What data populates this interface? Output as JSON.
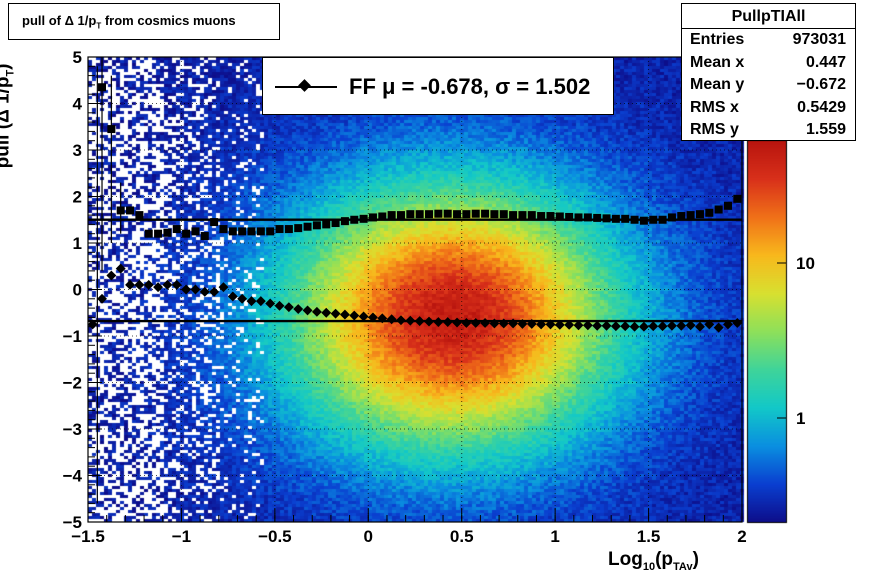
{
  "title": {
    "prefix": "pull of Δ 1/p",
    "sub": "T",
    "suffix": " from cosmics muons"
  },
  "stats": {
    "name": "PullpTIAll",
    "rows": [
      {
        "key": "Entries",
        "value": "973031"
      },
      {
        "key": "Mean x",
        "value": "0.447"
      },
      {
        "key": "Mean y",
        "value": "−0.672"
      },
      {
        "key": "RMS x",
        "value": "0.5429"
      },
      {
        "key": "RMS y",
        "value": "1.559"
      }
    ]
  },
  "legend": {
    "text": "FF μ = -0.678, σ =   1.502"
  },
  "axes": {
    "ylabel_prefix": "pull (Δ 1/p",
    "ylabel_sub": "T",
    "ylabel_suffix": ")",
    "xlabel_prefix": "Log",
    "xlabel_sub1": "10",
    "xlabel_mid": "(p",
    "xlabel_sub2": "TAv",
    "xlabel_suffix": ")"
  },
  "colors": {
    "markers": "#000000",
    "palette": [
      "#0d0d8a",
      "#0a3fd0",
      "#0a8fe0",
      "#12c8c8",
      "#3fd49a",
      "#8ee05a",
      "#d8e030",
      "#f8b81c",
      "#f07018",
      "#d8301a",
      "#b8140e"
    ]
  },
  "chart_data": {
    "type": "heatmap",
    "xlim": [
      -1.5,
      2.0
    ],
    "ylim": [
      -5,
      5
    ],
    "x_ticks": [
      "−1.5",
      "−1",
      "−0.5",
      "0",
      "0.5",
      "1",
      "1.5",
      "2"
    ],
    "y_ticks": [
      "−5",
      "−4",
      "−3",
      "−2",
      "−1",
      "0",
      "1",
      "2",
      "3",
      "4",
      "5"
    ],
    "z_scale": "log",
    "z_ticks": [
      "1",
      "10"
    ],
    "grid": true,
    "fitted_mean": -0.678,
    "fitted_sigma": 1.502,
    "mean_series": {
      "x": [
        -1.475,
        -1.425,
        -1.375,
        -1.325,
        -1.275,
        -1.225,
        -1.175,
        -1.125,
        -1.075,
        -1.025,
        -0.975,
        -0.925,
        -0.875,
        -0.825,
        -0.775,
        -0.725,
        -0.675,
        -0.625,
        -0.575,
        -0.525,
        -0.475,
        -0.425,
        -0.375,
        -0.325,
        -0.275,
        -0.225,
        -0.175,
        -0.125,
        -0.075,
        -0.025,
        0.025,
        0.075,
        0.125,
        0.175,
        0.225,
        0.275,
        0.325,
        0.375,
        0.425,
        0.475,
        0.525,
        0.575,
        0.625,
        0.675,
        0.725,
        0.775,
        0.825,
        0.875,
        0.925,
        0.975,
        1.025,
        1.075,
        1.125,
        1.175,
        1.225,
        1.275,
        1.325,
        1.375,
        1.425,
        1.475,
        1.525,
        1.575,
        1.625,
        1.675,
        1.725,
        1.775,
        1.825,
        1.875,
        1.925,
        1.975
      ],
      "y": [
        -0.75,
        -0.2,
        0.3,
        0.45,
        0.1,
        0.1,
        0.1,
        0.05,
        0.1,
        0.1,
        0.0,
        0.0,
        -0.05,
        -0.05,
        0.05,
        -0.15,
        -0.2,
        -0.25,
        -0.25,
        -0.3,
        -0.35,
        -0.38,
        -0.42,
        -0.45,
        -0.48,
        -0.5,
        -0.52,
        -0.54,
        -0.56,
        -0.58,
        -0.6,
        -0.62,
        -0.64,
        -0.66,
        -0.67,
        -0.68,
        -0.69,
        -0.7,
        -0.7,
        -0.71,
        -0.72,
        -0.72,
        -0.72,
        -0.73,
        -0.73,
        -0.73,
        -0.74,
        -0.74,
        -0.75,
        -0.75,
        -0.76,
        -0.76,
        -0.77,
        -0.77,
        -0.78,
        -0.78,
        -0.79,
        -0.79,
        -0.8,
        -0.8,
        -0.79,
        -0.79,
        -0.78,
        -0.78,
        -0.77,
        -0.8,
        -0.75,
        -0.82,
        -0.75,
        -0.72
      ]
    },
    "rms_series": {
      "x": [
        -1.425,
        -1.375,
        -1.325,
        -1.275,
        -1.225,
        -1.175,
        -1.125,
        -1.075,
        -1.025,
        -0.975,
        -0.925,
        -0.875,
        -0.825,
        -0.775,
        -0.725,
        -0.675,
        -0.625,
        -0.575,
        -0.525,
        -0.475,
        -0.425,
        -0.375,
        -0.325,
        -0.275,
        -0.225,
        -0.175,
        -0.125,
        -0.075,
        -0.025,
        0.025,
        0.075,
        0.125,
        0.175,
        0.225,
        0.275,
        0.325,
        0.375,
        0.425,
        0.475,
        0.525,
        0.575,
        0.625,
        0.675,
        0.725,
        0.775,
        0.825,
        0.875,
        0.925,
        0.975,
        1.025,
        1.075,
        1.125,
        1.175,
        1.225,
        1.275,
        1.325,
        1.375,
        1.425,
        1.475,
        1.525,
        1.575,
        1.625,
        1.675,
        1.725,
        1.775,
        1.825,
        1.875,
        1.925,
        1.975
      ],
      "y": [
        4.35,
        3.45,
        1.7,
        1.7,
        1.6,
        1.2,
        1.2,
        1.22,
        1.3,
        1.2,
        1.25,
        1.15,
        1.45,
        1.3,
        1.25,
        1.25,
        1.25,
        1.25,
        1.25,
        1.3,
        1.3,
        1.32,
        1.35,
        1.38,
        1.4,
        1.43,
        1.47,
        1.5,
        1.52,
        1.55,
        1.57,
        1.6,
        1.6,
        1.62,
        1.62,
        1.62,
        1.63,
        1.63,
        1.62,
        1.62,
        1.63,
        1.63,
        1.62,
        1.62,
        1.6,
        1.6,
        1.6,
        1.58,
        1.58,
        1.57,
        1.56,
        1.55,
        1.55,
        1.54,
        1.53,
        1.52,
        1.52,
        1.5,
        1.48,
        1.5,
        1.5,
        1.55,
        1.58,
        1.6,
        1.62,
        1.65,
        1.72,
        1.8,
        1.95
      ]
    },
    "rms_errors": [
      {
        "x": -1.425,
        "low": 0.4,
        "high": 5.0
      },
      {
        "x": -1.375,
        "low": 1.0,
        "high": 4.6
      },
      {
        "x": -1.325,
        "low": 1.2,
        "high": 2.3
      }
    ],
    "fit_lines_y": [
      -0.678,
      1.502
    ]
  }
}
